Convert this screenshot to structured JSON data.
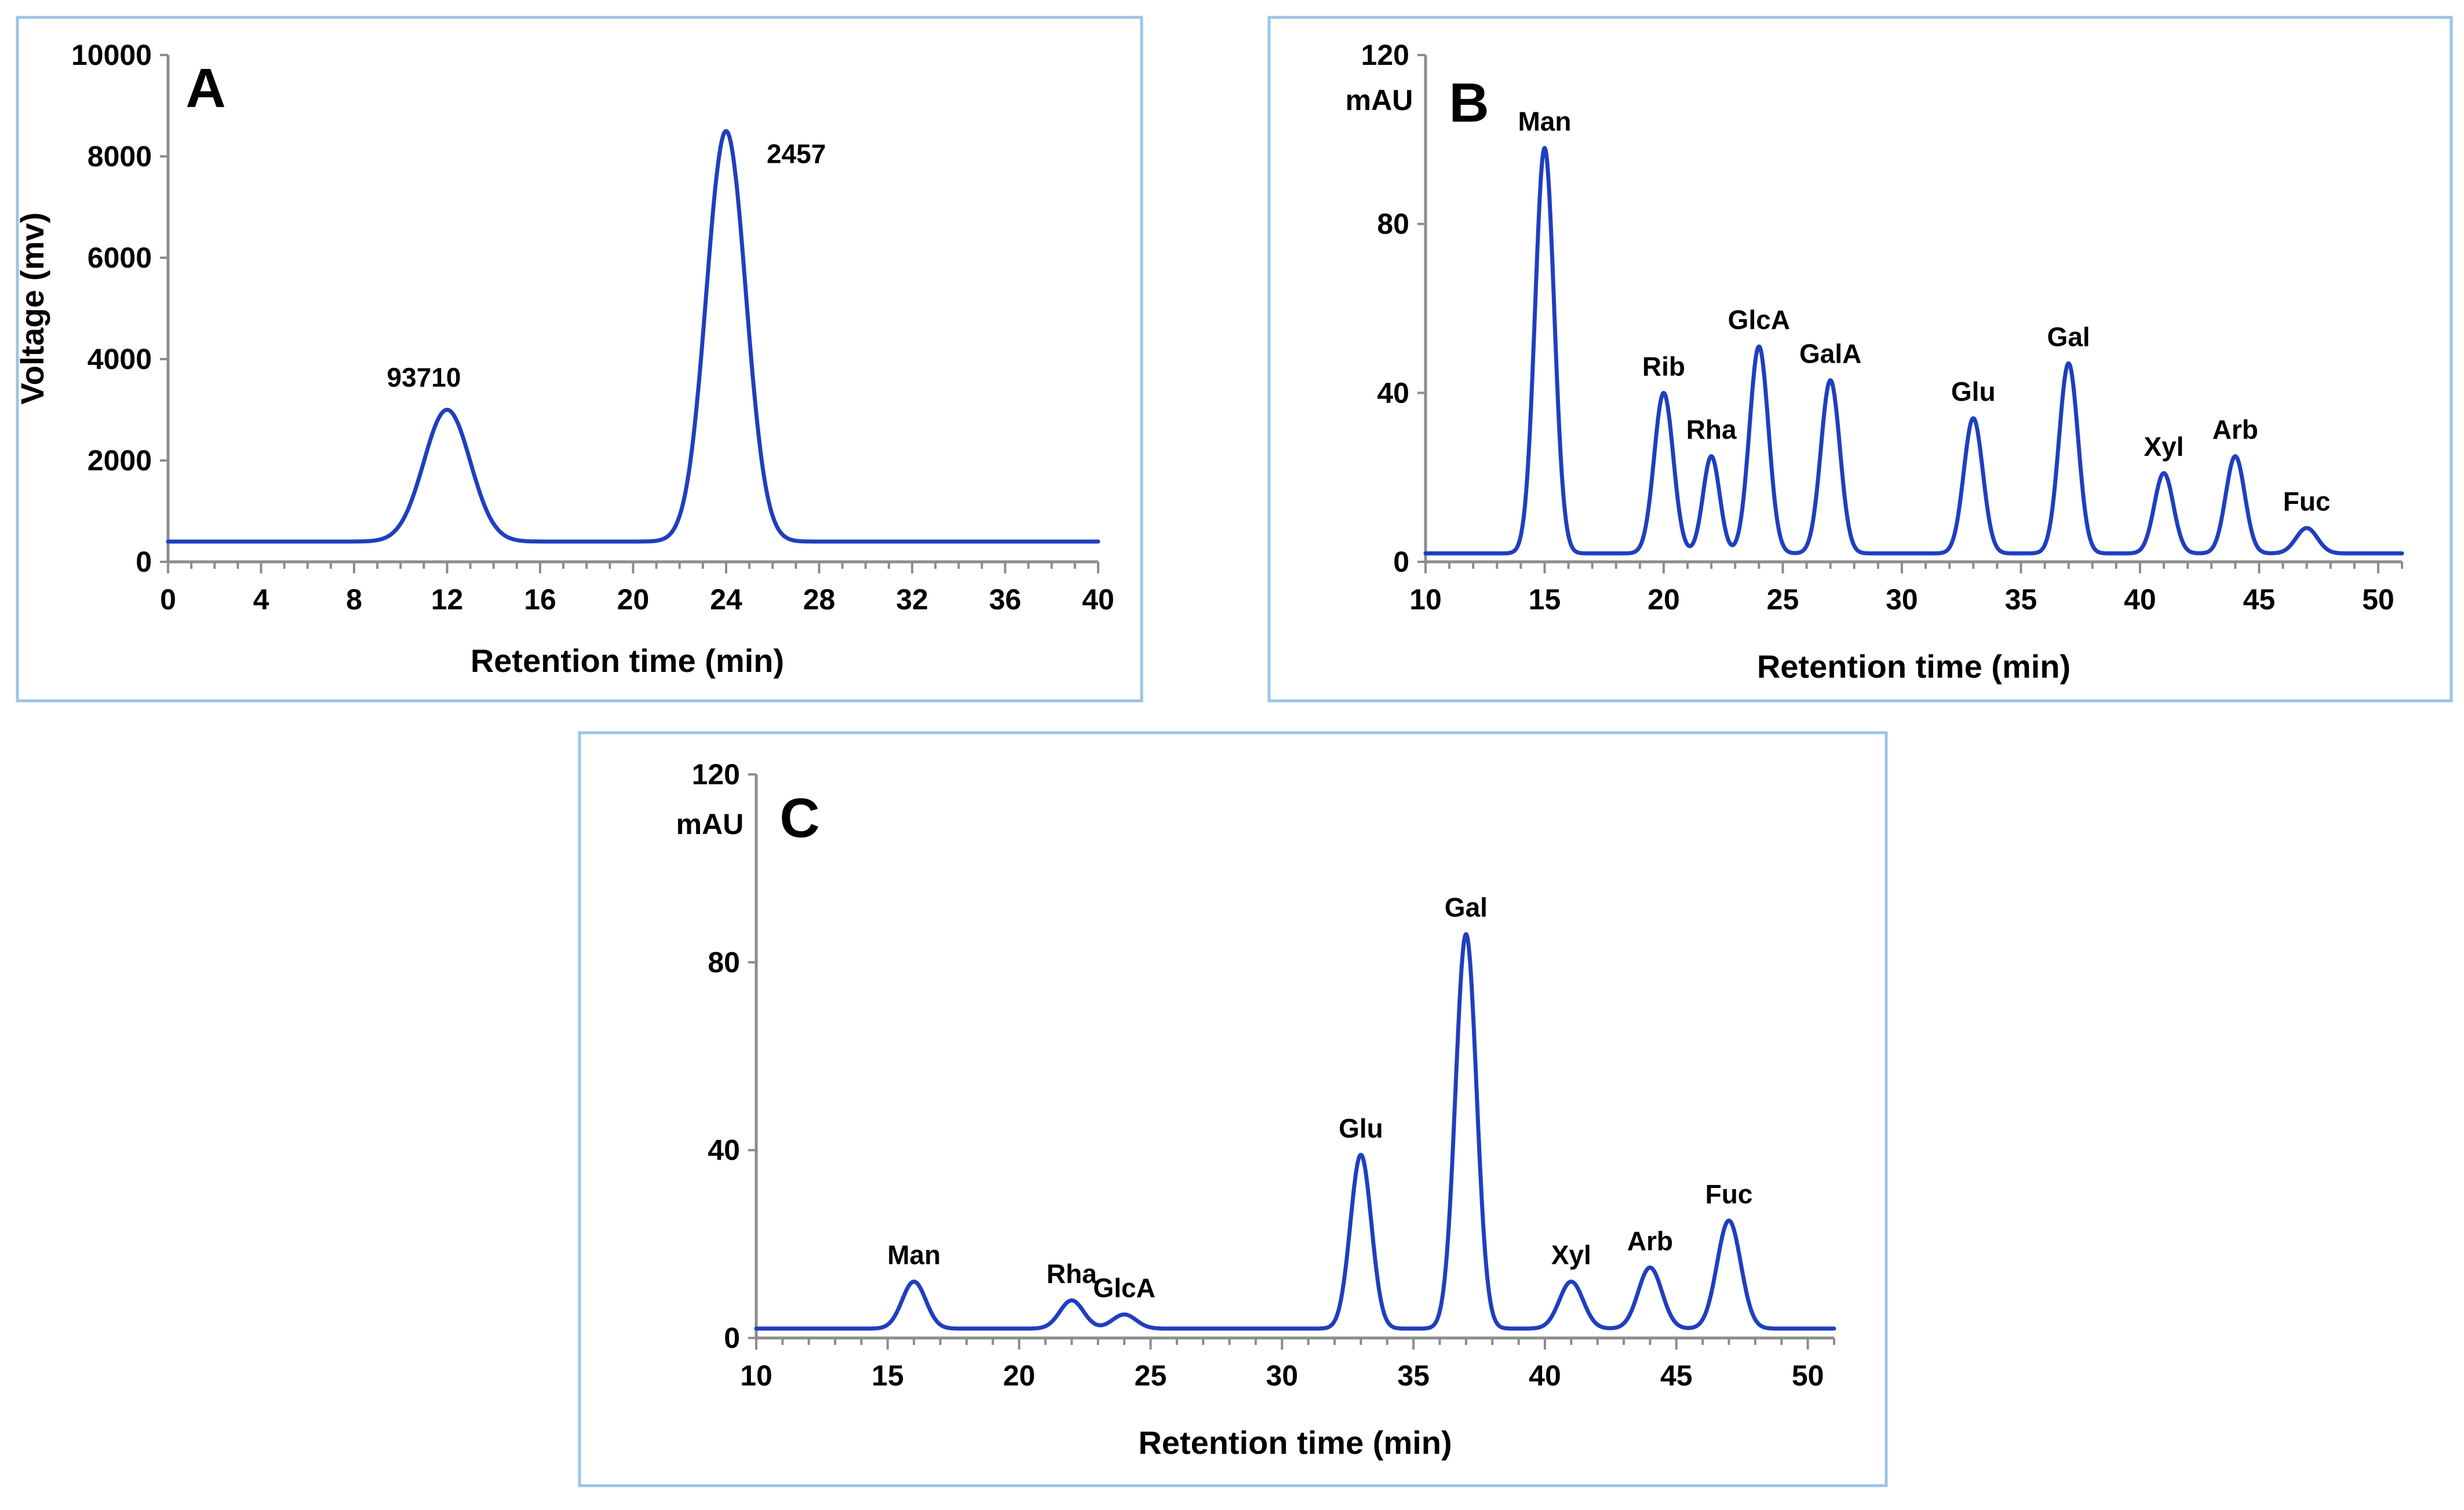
{
  "colors": {
    "trace": "#1f3fbf",
    "axis": "#8c8c8c",
    "frame": "#9dc3e6"
  },
  "chart_data": [
    {
      "panel": "A",
      "type": "line",
      "xlabel": "Retention time (min)",
      "ylabel": "Voltage (mv)",
      "xlim": [
        0,
        40
      ],
      "ylim": [
        0,
        10000
      ],
      "xticks": [
        0,
        4,
        8,
        12,
        16,
        20,
        24,
        28,
        32,
        36,
        40
      ],
      "yticks": [
        0,
        2000,
        4000,
        6000,
        8000,
        10000
      ],
      "baseline": 400,
      "peaks": [
        {
          "label": "93710",
          "x": 12,
          "y": 3000,
          "width": 1.0
        },
        {
          "label": "2457",
          "x": 24,
          "y": 8500,
          "width": 0.85
        }
      ]
    },
    {
      "panel": "B",
      "type": "line",
      "unit": "mAU",
      "xlabel": "Retention time (min)",
      "xlim": [
        10,
        51
      ],
      "ylim": [
        0,
        120
      ],
      "xticks": [
        10,
        15,
        20,
        25,
        30,
        35,
        40,
        45,
        50
      ],
      "yticks": [
        0,
        40,
        80,
        120
      ],
      "baseline": 2,
      "peaks": [
        {
          "label": "Man",
          "x": 15,
          "y": 98,
          "width": 0.4
        },
        {
          "label": "Rib",
          "x": 20,
          "y": 40,
          "width": 0.4
        },
        {
          "label": "Rha",
          "x": 22,
          "y": 25,
          "width": 0.35
        },
        {
          "label": "GlcA",
          "x": 24,
          "y": 51,
          "width": 0.4
        },
        {
          "label": "GalA",
          "x": 27,
          "y": 43,
          "width": 0.4
        },
        {
          "label": "Glu",
          "x": 33,
          "y": 34,
          "width": 0.4
        },
        {
          "label": "Gal",
          "x": 37,
          "y": 47,
          "width": 0.4
        },
        {
          "label": "Xyl",
          "x": 41,
          "y": 21,
          "width": 0.4
        },
        {
          "label": "Arb",
          "x": 44,
          "y": 25,
          "width": 0.4
        },
        {
          "label": "Fuc",
          "x": 47,
          "y": 8,
          "width": 0.45
        }
      ]
    },
    {
      "panel": "C",
      "type": "line",
      "unit": "mAU",
      "xlabel": "Retention time (min)",
      "xlim": [
        10,
        51
      ],
      "ylim": [
        0,
        120
      ],
      "xticks": [
        10,
        15,
        20,
        25,
        30,
        35,
        40,
        45,
        50
      ],
      "yticks": [
        0,
        40,
        80,
        120
      ],
      "baseline": 2,
      "peaks": [
        {
          "label": "Man",
          "x": 16,
          "y": 12,
          "width": 0.45
        },
        {
          "label": "Rha",
          "x": 22,
          "y": 8,
          "width": 0.45
        },
        {
          "label": "GlcA",
          "x": 24,
          "y": 5,
          "width": 0.45
        },
        {
          "label": "Glu",
          "x": 33,
          "y": 39,
          "width": 0.4
        },
        {
          "label": "Gal",
          "x": 37,
          "y": 86,
          "width": 0.4
        },
        {
          "label": "Xyl",
          "x": 41,
          "y": 12,
          "width": 0.45
        },
        {
          "label": "Arb",
          "x": 44,
          "y": 15,
          "width": 0.45
        },
        {
          "label": "Fuc",
          "x": 47,
          "y": 25,
          "width": 0.45
        }
      ]
    }
  ]
}
